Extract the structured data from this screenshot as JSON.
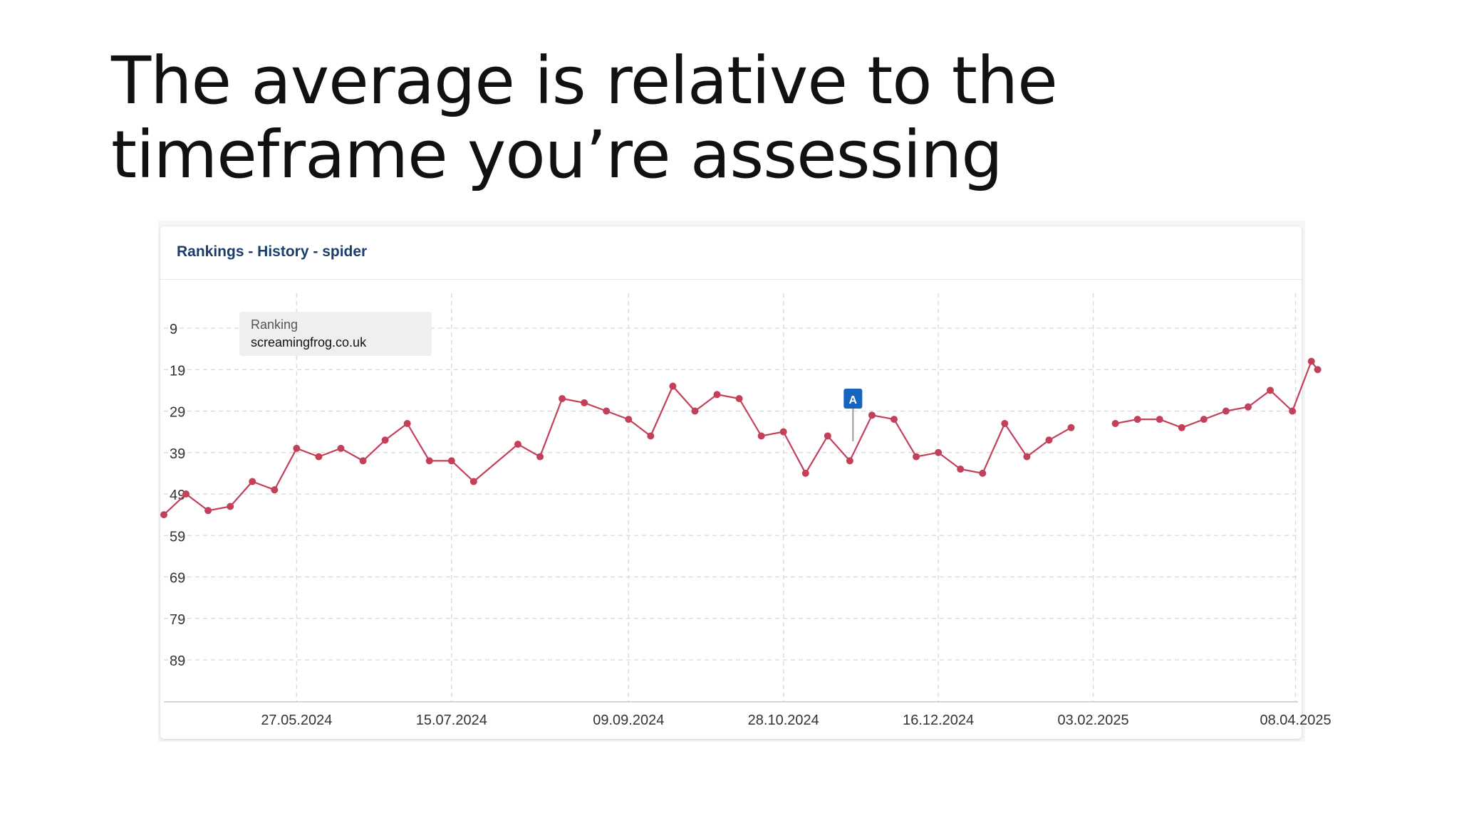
{
  "slide": {
    "title_line1": "The average is relative to the",
    "title_line2": "timeframe you’re assessing"
  },
  "panel": {
    "title": "Rankings - History - spider"
  },
  "tooltip": {
    "label": "Ranking",
    "domain": "screamingfrog.co.uk"
  },
  "annotation": {
    "label": "A",
    "date": "2024-11-19",
    "color": "#1565c0"
  },
  "colors": {
    "line": "#c2405a",
    "grid": "#d8d8d8",
    "axis": "#c8c8c8",
    "text": "#333333"
  },
  "chart_data": {
    "type": "line",
    "title": "Rankings - History - spider",
    "y_inverted": true,
    "ylim": [
      97,
      0
    ],
    "yticks": [
      9,
      19,
      29,
      39,
      49,
      59,
      69,
      79,
      89
    ],
    "x_range": [
      "2024-04-15",
      "2025-04-09"
    ],
    "x_ticks": [
      {
        "date": "2024-05-27",
        "label": "27.05.2024"
      },
      {
        "date": "2024-07-15",
        "label": "15.07.2024"
      },
      {
        "date": "2024-09-09",
        "label": "09.09.2024"
      },
      {
        "date": "2024-10-28",
        "label": "28.10.2024"
      },
      {
        "date": "2024-12-16",
        "label": "16.12.2024"
      },
      {
        "date": "2025-02-03",
        "label": "03.02.2025"
      },
      {
        "date": "2025-04-08",
        "label": "08.04.2025"
      }
    ],
    "grid": true,
    "legend": "top-left",
    "series": [
      {
        "name": "screamingfrog.co.uk",
        "segments": [
          [
            [
              "2024-04-15",
              54
            ],
            [
              "2024-04-22",
              49
            ],
            [
              "2024-04-29",
              53
            ],
            [
              "2024-05-06",
              52
            ],
            [
              "2024-05-13",
              46
            ],
            [
              "2024-05-20",
              48
            ],
            [
              "2024-05-27",
              38
            ],
            [
              "2024-06-03",
              40
            ],
            [
              "2024-06-10",
              38
            ],
            [
              "2024-06-17",
              41
            ],
            [
              "2024-06-24",
              36
            ],
            [
              "2024-07-01",
              32
            ],
            [
              "2024-07-08",
              41
            ],
            [
              "2024-07-15",
              41
            ],
            [
              "2024-07-22",
              46
            ],
            [
              "2024-08-05",
              37
            ],
            [
              "2024-08-12",
              40
            ],
            [
              "2024-08-19",
              26
            ],
            [
              "2024-08-26",
              27
            ],
            [
              "2024-09-02",
              29
            ],
            [
              "2024-09-09",
              31
            ],
            [
              "2024-09-16",
              35
            ],
            [
              "2024-09-23",
              23
            ],
            [
              "2024-09-30",
              29
            ],
            [
              "2024-10-07",
              25
            ],
            [
              "2024-10-14",
              26
            ],
            [
              "2024-10-21",
              35
            ],
            [
              "2024-10-28",
              34
            ],
            [
              "2024-11-04",
              44
            ],
            [
              "2024-11-11",
              35
            ],
            [
              "2024-11-18",
              41
            ],
            [
              "2024-11-25",
              30
            ],
            [
              "2024-12-02",
              31
            ],
            [
              "2024-12-09",
              40
            ],
            [
              "2024-12-16",
              39
            ],
            [
              "2024-12-23",
              43
            ],
            [
              "2024-12-30",
              44
            ],
            [
              "2025-01-06",
              32
            ],
            [
              "2025-01-13",
              40
            ],
            [
              "2025-01-20",
              36
            ],
            [
              "2025-01-27",
              33
            ]
          ],
          [
            [
              "2025-02-10",
              32
            ],
            [
              "2025-02-17",
              31
            ],
            [
              "2025-02-24",
              31
            ],
            [
              "2025-03-03",
              33
            ],
            [
              "2025-03-10",
              31
            ],
            [
              "2025-03-17",
              29
            ],
            [
              "2025-03-24",
              28
            ],
            [
              "2025-03-31",
              24
            ],
            [
              "2025-04-07",
              29
            ],
            [
              "2025-04-13",
              17
            ],
            [
              "2025-04-15",
              19
            ]
          ]
        ]
      }
    ]
  }
}
